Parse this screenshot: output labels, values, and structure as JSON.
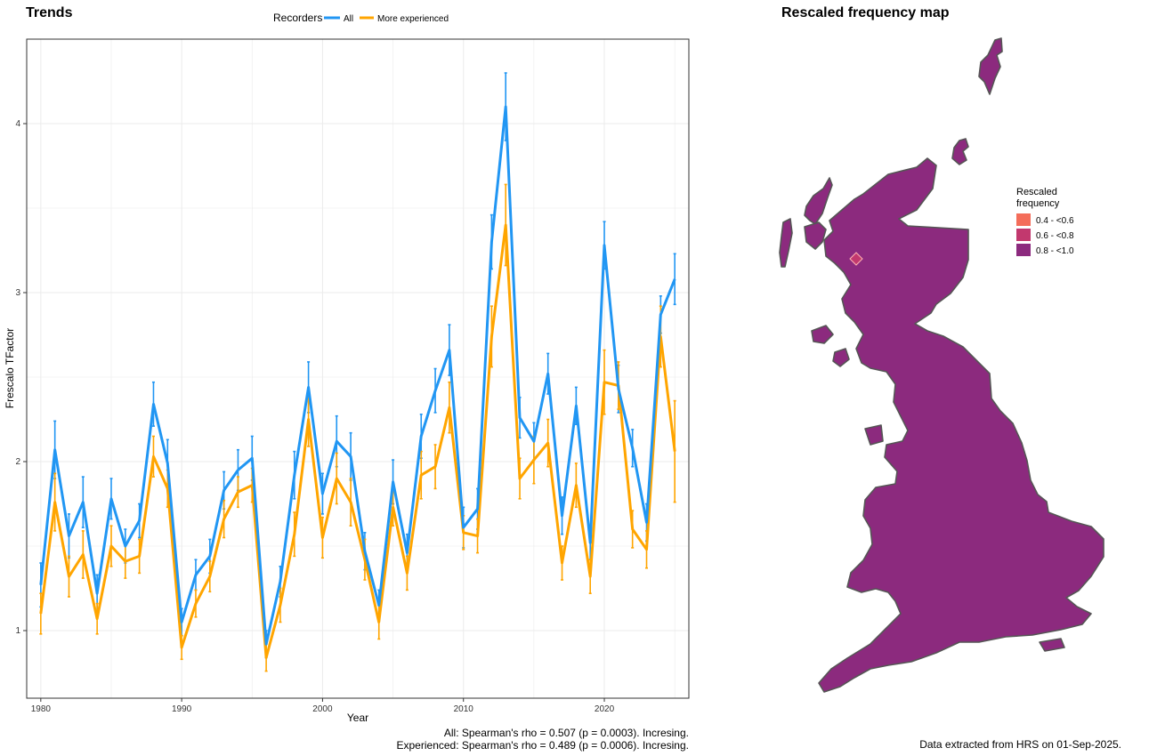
{
  "colors": {
    "all": "#2196F3",
    "experienced": "#FFA500",
    "grid": "#ebebeb",
    "legend_04_06": "#F46D5A",
    "legend_06_08": "#C2386E",
    "legend_08_10": "#8C2A7E",
    "map_fill": "#8C2A7E",
    "map_border": "#555555"
  },
  "chart_data": [
    {
      "type": "line",
      "title": "Trends",
      "xlabel": "Year",
      "ylabel": "Frescalo TFactor",
      "legend_title": "Recorders",
      "legend_position": "top",
      "grid": true,
      "xlim": [
        1979,
        2026
      ],
      "ylim": [
        0.6,
        4.5
      ],
      "x_ticks": [
        1980,
        1990,
        2000,
        2010,
        2020
      ],
      "y_ticks": [
        1,
        2,
        3,
        4
      ],
      "x": [
        1980,
        1981,
        1982,
        1983,
        1984,
        1985,
        1986,
        1987,
        1988,
        1989,
        1990,
        1991,
        1992,
        1993,
        1994,
        1995,
        1996,
        1997,
        1998,
        1999,
        2000,
        2001,
        2002,
        2003,
        2004,
        2005,
        2006,
        2007,
        2008,
        2009,
        2010,
        2011,
        2012,
        2013,
        2014,
        2015,
        2016,
        2017,
        2018,
        2019,
        2020,
        2021,
        2022,
        2023,
        2024,
        2025
      ],
      "series": [
        {
          "name": "All",
          "color_key": "all",
          "values": [
            1.27,
            2.07,
            1.56,
            1.76,
            1.22,
            1.78,
            1.5,
            1.65,
            2.34,
            1.99,
            1.05,
            1.33,
            1.44,
            1.83,
            1.95,
            2.02,
            0.92,
            1.29,
            1.92,
            2.44,
            1.81,
            2.12,
            2.03,
            1.47,
            1.15,
            1.88,
            1.46,
            2.15,
            2.42,
            2.66,
            1.61,
            1.72,
            3.3,
            4.1,
            2.26,
            2.12,
            2.52,
            1.68,
            2.33,
            1.52,
            3.28,
            2.43,
            2.08,
            1.64,
            2.87,
            3.08
          ],
          "err": [
            0.13,
            0.17,
            0.13,
            0.15,
            0.11,
            0.12,
            0.1,
            0.1,
            0.13,
            0.14,
            0.08,
            0.09,
            0.1,
            0.11,
            0.12,
            0.13,
            0.08,
            0.09,
            0.14,
            0.15,
            0.12,
            0.15,
            0.14,
            0.11,
            0.09,
            0.13,
            0.11,
            0.13,
            0.13,
            0.15,
            0.12,
            0.12,
            0.16,
            0.2,
            0.12,
            0.11,
            0.12,
            0.11,
            0.11,
            0.1,
            0.14,
            0.14,
            0.11,
            0.11,
            0.11,
            0.15
          ]
        },
        {
          "name": "More experienced",
          "color_key": "experienced",
          "values": [
            1.1,
            1.76,
            1.32,
            1.45,
            1.07,
            1.5,
            1.41,
            1.44,
            2.03,
            1.84,
            0.9,
            1.16,
            1.32,
            1.66,
            1.82,
            1.86,
            0.84,
            1.15,
            1.57,
            2.25,
            1.55,
            1.9,
            1.76,
            1.42,
            1.05,
            1.73,
            1.34,
            1.92,
            1.97,
            2.32,
            1.58,
            1.56,
            2.74,
            3.4,
            1.9,
            2.01,
            2.11,
            1.4,
            1.86,
            1.32,
            2.47,
            2.45,
            1.6,
            1.48,
            2.74,
            2.06
          ],
          "err": [
            0.12,
            0.17,
            0.12,
            0.14,
            0.09,
            0.12,
            0.1,
            0.1,
            0.12,
            0.11,
            0.07,
            0.08,
            0.09,
            0.11,
            0.09,
            0.1,
            0.08,
            0.1,
            0.13,
            0.16,
            0.12,
            0.15,
            0.14,
            0.12,
            0.1,
            0.11,
            0.1,
            0.14,
            0.13,
            0.15,
            0.1,
            0.1,
            0.18,
            0.24,
            0.12,
            0.14,
            0.14,
            0.1,
            0.13,
            0.1,
            0.19,
            0.14,
            0.11,
            0.11,
            0.18,
            0.3
          ]
        }
      ],
      "annotations": [
        "All: Spearman's rho = 0.507 (p = 0.0003). Incresing.",
        "Experienced: Spearman's rho = 0.489 (p = 0.0006). Incresing."
      ]
    }
  ],
  "map": {
    "title": "Rescaled frequency map",
    "legend_title_line1": "Rescaled",
    "legend_title_line2": "frequency",
    "legend_items": [
      {
        "label": "0.4 - <0.6",
        "color_key": "legend_04_06"
      },
      {
        "label": "0.6 - <0.8",
        "color_key": "legend_06_08"
      },
      {
        "label": "0.8 - <1.0",
        "color_key": "legend_08_10"
      }
    ],
    "footer": "Data extracted from HRS on 01-Sep-2025."
  }
}
